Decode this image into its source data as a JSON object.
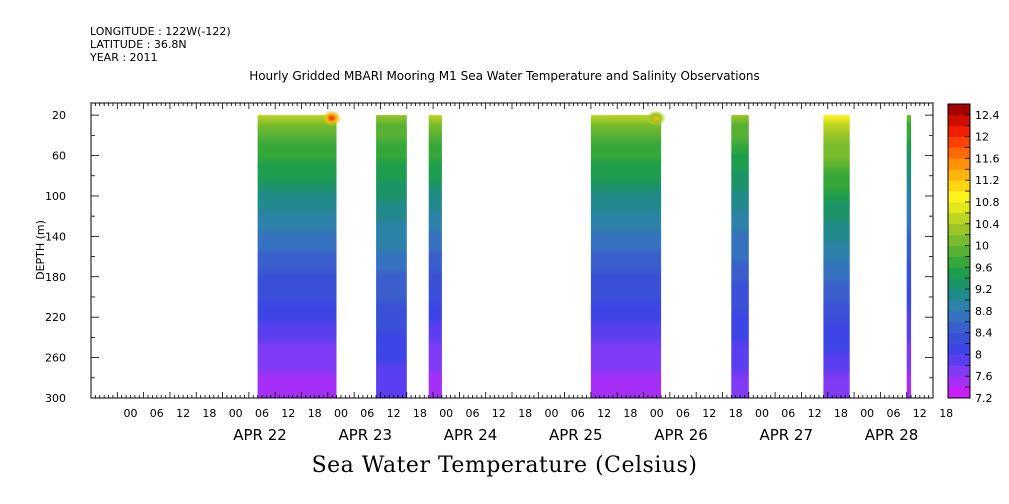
{
  "header": {
    "longitude": "LONGITUDE : 122W(-122)",
    "latitude": "LATITUDE : 36.8N",
    "year": "YEAR : 2011",
    "title": "Hourly Gridded MBARI Mooring M1 Sea Water Temperature and Salinity Observations"
  },
  "footer": {
    "variable_title": "Sea Water Temperature (Celsius)"
  },
  "chart_data": {
    "type": "heatmap",
    "title": "Hourly Gridded MBARI Mooring M1 Sea Water Temperature and Salinity Observations",
    "variable": "Sea Water Temperature (Celsius)",
    "ylabel": "DEPTH (m)",
    "y_reversed": true,
    "ylim": [
      300,
      8
    ],
    "y_ticks": [
      20,
      60,
      100,
      140,
      180,
      220,
      260,
      300
    ],
    "x_time_range": [
      "2011-04-21 00:00",
      "2011-04-29 00:00"
    ],
    "x_hour_labels": [
      "00",
      "06",
      "12",
      "18",
      "00",
      "06",
      "12",
      "18",
      "00",
      "06",
      "12",
      "18",
      "00",
      "06",
      "12",
      "18",
      "00",
      "06",
      "12",
      "18",
      "00",
      "06",
      "12",
      "18",
      "00",
      "06",
      "12",
      "18",
      "00",
      "06",
      "12",
      "18"
    ],
    "x_day_labels": [
      "APR 22",
      "APR 23",
      "APR 24",
      "APR 25",
      "APR 26",
      "APR 27",
      "APR 28"
    ],
    "colorbar": {
      "levels": [
        7.2,
        7.4,
        7.6,
        7.8,
        8.0,
        8.2,
        8.4,
        8.6,
        8.8,
        9.0,
        9.2,
        9.4,
        9.6,
        9.8,
        10.0,
        10.2,
        10.4,
        10.6,
        10.8,
        11.0,
        11.2,
        11.4,
        11.6,
        11.8,
        12.0,
        12.2,
        12.4,
        12.6
      ],
      "colors": [
        "#c71ff7",
        "#a52ff7",
        "#7f3bf5",
        "#5a3ff0",
        "#3d45e6",
        "#3a50d8",
        "#3a5ecb",
        "#3572bf",
        "#2c82a8",
        "#218a8a",
        "#1d9468",
        "#1e9e4c",
        "#36a83a",
        "#58b133",
        "#78bb2c",
        "#99c528",
        "#bdd420",
        "#e3e81a",
        "#fff31c",
        "#ffd611",
        "#ffb40b",
        "#ff9208",
        "#ff6a05",
        "#ff4202",
        "#f01d00",
        "#d00c00",
        "#a40000"
      ],
      "tick_labels": [
        "7.2",
        "7.6",
        "8",
        "8.4",
        "8.8",
        "9.2",
        "9.6",
        "10",
        "10.4",
        "10.8",
        "11.2",
        "11.6",
        "12",
        "12.4"
      ]
    },
    "observation_periods": [
      {
        "start": "2011-04-22 14:00",
        "end": "2011-04-23 08:00",
        "surface_temp": 10.4,
        "warm_spot_temp": 12.0,
        "bottom_temp": 7.4
      },
      {
        "start": "2011-04-23 17:00",
        "end": "2011-04-24 00:00",
        "surface_temp": 10.2,
        "bottom_temp": 7.8
      },
      {
        "start": "2011-04-24 05:00",
        "end": "2011-04-24 08:00",
        "surface_temp": 10.4,
        "bottom_temp": 7.4
      },
      {
        "start": "2011-04-25 23:00",
        "end": "2011-04-25 05:00",
        "surface_temp": 10.4,
        "bottom_temp": 7.6
      },
      {
        "start": "2011-04-25 18:00",
        "end": "2011-04-26 10:00",
        "surface_temp": 10.4,
        "warm_spot_temp": 11.2,
        "bottom_temp": 7.4
      },
      {
        "start": "2011-04-27 02:00",
        "end": "2011-04-27 06:00",
        "surface_temp": 10.2,
        "bottom_temp": 7.6
      },
      {
        "start": "2011-04-27 23:00",
        "end": "2011-04-28 05:00",
        "surface_temp": 10.8,
        "bottom_temp": 7.6
      },
      {
        "start": "2011-04-28 18:00",
        "end": "2011-04-28 19:00",
        "surface_temp": 10.0,
        "bottom_temp": 7.4
      }
    ]
  }
}
